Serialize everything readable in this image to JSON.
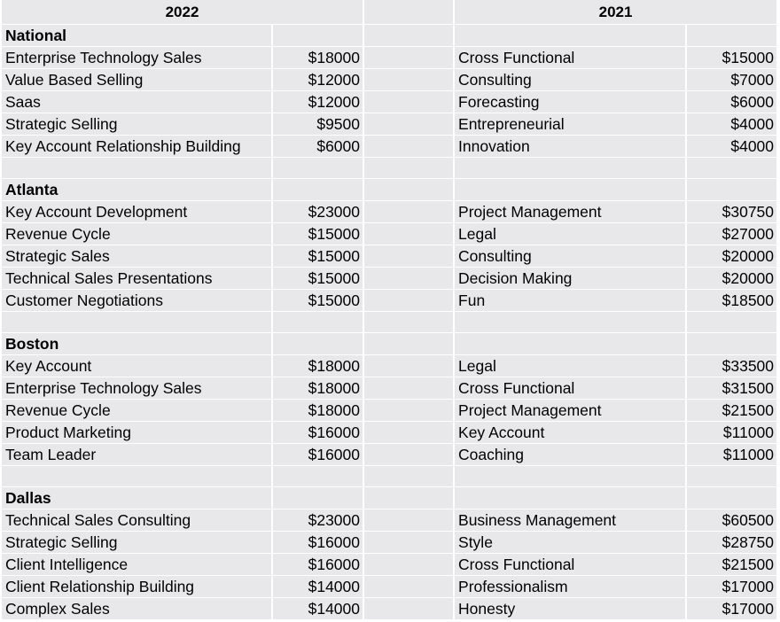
{
  "headers": {
    "left_year": "2022",
    "right_year": "2021"
  },
  "sections": [
    {
      "city": "National",
      "rows": [
        {
          "left_skill": "Enterprise Technology Sales",
          "left_value": "$18000",
          "right_skill": "Cross Functional",
          "right_value": "$15000"
        },
        {
          "left_skill": "Value Based Selling",
          "left_value": "$12000",
          "right_skill": "Consulting",
          "right_value": "$7000"
        },
        {
          "left_skill": "Saas",
          "left_value": "$12000",
          "right_skill": "Forecasting",
          "right_value": "$6000"
        },
        {
          "left_skill": "Strategic Selling",
          "left_value": "$9500",
          "right_skill": "Entrepreneurial",
          "right_value": "$4000"
        },
        {
          "left_skill": "Key Account Relationship Building",
          "left_value": "$6000",
          "right_skill": "Innovation",
          "right_value": "$4000"
        }
      ]
    },
    {
      "city": "Atlanta",
      "rows": [
        {
          "left_skill": "Key Account Development",
          "left_value": "$23000",
          "right_skill": "Project Management",
          "right_value": "$30750"
        },
        {
          "left_skill": "Revenue Cycle",
          "left_value": "$15000",
          "right_skill": "Legal",
          "right_value": "$27000"
        },
        {
          "left_skill": "Strategic Sales",
          "left_value": "$15000",
          "right_skill": "Consulting",
          "right_value": "$20000"
        },
        {
          "left_skill": "Technical Sales Presentations",
          "left_value": "$15000",
          "right_skill": "Decision Making",
          "right_value": "$20000"
        },
        {
          "left_skill": "Customer Negotiations",
          "left_value": "$15000",
          "right_skill": "Fun",
          "right_value": "$18500"
        }
      ]
    },
    {
      "city": "Boston",
      "rows": [
        {
          "left_skill": "Key Account",
          "left_value": "$18000",
          "right_skill": "Legal",
          "right_value": "$33500"
        },
        {
          "left_skill": "Enterprise Technology Sales",
          "left_value": "$18000",
          "right_skill": "Cross Functional",
          "right_value": "$31500"
        },
        {
          "left_skill": "Revenue Cycle",
          "left_value": "$18000",
          "right_skill": "Project Management",
          "right_value": "$21500"
        },
        {
          "left_skill": "Product Marketing",
          "left_value": "$16000",
          "right_skill": "Key Account",
          "right_value": "$11000"
        },
        {
          "left_skill": "Team Leader",
          "left_value": "$16000",
          "right_skill": "Coaching",
          "right_value": "$11000"
        }
      ]
    },
    {
      "city": "Dallas",
      "rows": [
        {
          "left_skill": "Technical Sales Consulting",
          "left_value": "$23000",
          "right_skill": "Business Management",
          "right_value": "$60500"
        },
        {
          "left_skill": "Strategic Selling",
          "left_value": "$16000",
          "right_skill": "Style",
          "right_value": "$28750"
        },
        {
          "left_skill": "Client Intelligence",
          "left_value": "$16000",
          "right_skill": "Cross Functional",
          "right_value": "$21500"
        },
        {
          "left_skill": "Client Relationship Building",
          "left_value": "$14000",
          "right_skill": "Professionalism",
          "right_value": "$17000"
        },
        {
          "left_skill": "Complex Sales",
          "left_value": "$14000",
          "right_skill": "Honesty",
          "right_value": "$17000"
        }
      ]
    }
  ]
}
